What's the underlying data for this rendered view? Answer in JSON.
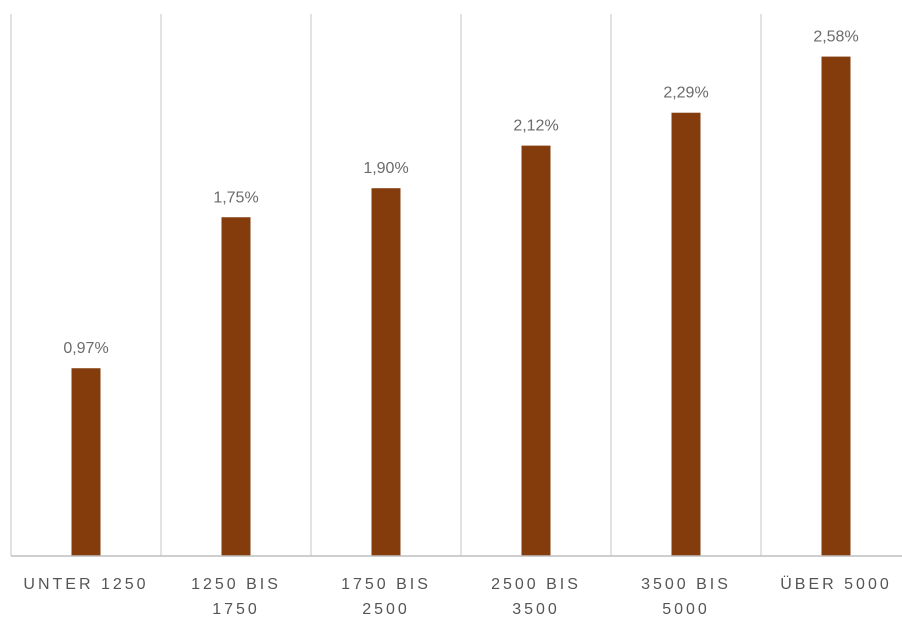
{
  "chart_data": {
    "type": "bar",
    "categories": [
      [
        "UNTER 1250"
      ],
      [
        "1250 BIS",
        "1750"
      ],
      [
        "1750 BIS",
        "2500"
      ],
      [
        "2500 BIS",
        "3500"
      ],
      [
        "3500 BIS",
        "5000"
      ],
      [
        "ÜBER 5000"
      ]
    ],
    "values": [
      0.97,
      1.75,
      1.9,
      2.12,
      2.29,
      2.58
    ],
    "data_labels": [
      "0,97%",
      "1,75%",
      "1,90%",
      "2,12%",
      "2,29%",
      "2,58%"
    ],
    "ylim": [
      0,
      2.8
    ],
    "grid": "vertical category separators",
    "legend": "none",
    "bar_color": "#843C0C",
    "gridline_color": "#d9d9d9",
    "axis_color": "#bfbfbf"
  }
}
